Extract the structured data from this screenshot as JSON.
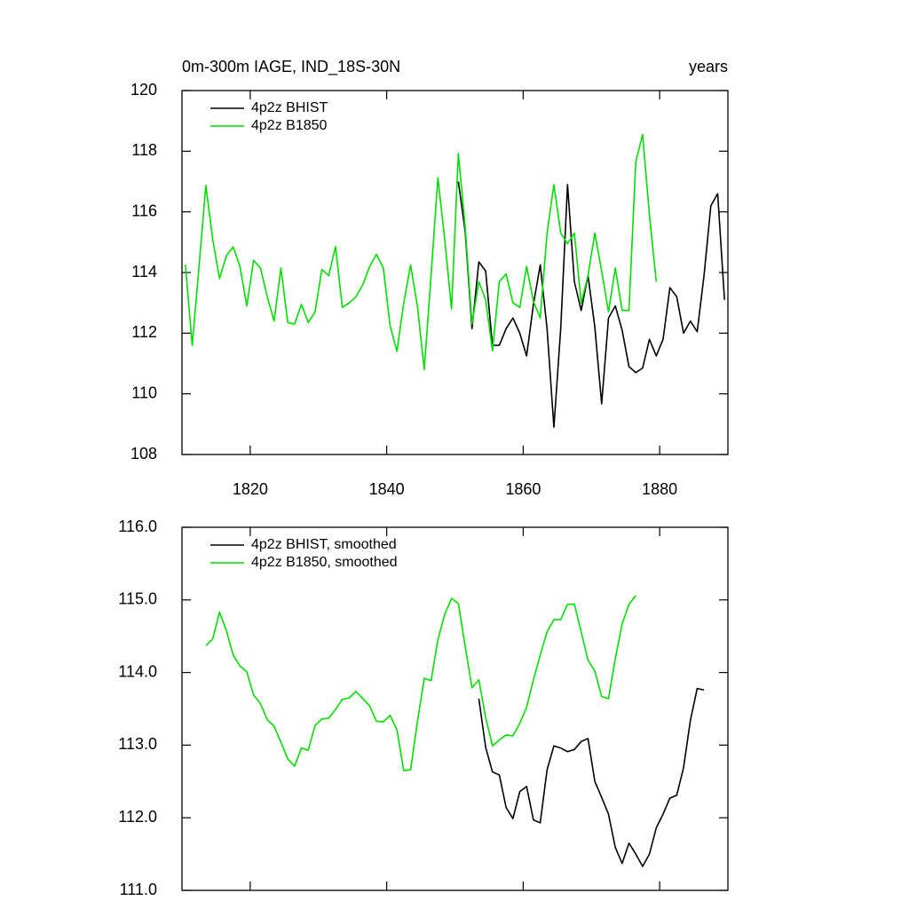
{
  "chart_data": [
    {
      "type": "line",
      "title": "0m-300m IAGE, IND_18S-30N",
      "subtitle": "years",
      "xlim": [
        1810,
        1890
      ],
      "xticks": [
        1820,
        1840,
        1860,
        1880
      ],
      "ylim": [
        108,
        120
      ],
      "yticks": [
        108,
        110,
        112,
        114,
        116,
        118,
        120
      ],
      "legend": "upper left",
      "series": [
        {
          "name": "4p2z BHIST",
          "color": "#000000",
          "x": [
            1850.5,
            1851.5,
            1852.5,
            1853.5,
            1854.5,
            1855.5,
            1856.5,
            1857.5,
            1858.5,
            1859.5,
            1860.5,
            1861.5,
            1862.5,
            1863.5,
            1864.5,
            1865.5,
            1866.5,
            1867.5,
            1868.5,
            1869.5,
            1870.5,
            1871.5,
            1872.5,
            1873.5,
            1874.5,
            1875.5,
            1876.5,
            1877.5,
            1878.5,
            1879.5,
            1880.5,
            1881.5,
            1882.5,
            1883.5,
            1884.5,
            1885.5,
            1886.5,
            1887.5,
            1888.5,
            1889.5
          ],
          "values": [
            117.0,
            115.35,
            112.15,
            114.35,
            114.05,
            111.6,
            111.6,
            112.15,
            112.5,
            112.0,
            111.25,
            112.95,
            114.25,
            112.15,
            108.9,
            112.15,
            116.9,
            113.7,
            112.75,
            113.9,
            112.2,
            109.67,
            112.5,
            112.9,
            112.1,
            110.9,
            110.7,
            110.85,
            111.8,
            111.25,
            111.8,
            113.5,
            113.2,
            112.0,
            112.4,
            112.05,
            113.9,
            116.2,
            116.6,
            113.1
          ]
        },
        {
          "name": "4p2z B1850",
          "color": "#00e000",
          "x": [
            1810.5,
            1811.5,
            1812.5,
            1813.5,
            1814.5,
            1815.5,
            1816.5,
            1817.5,
            1818.5,
            1819.5,
            1820.5,
            1821.5,
            1822.5,
            1823.5,
            1824.5,
            1825.5,
            1826.5,
            1827.5,
            1828.5,
            1829.5,
            1830.5,
            1831.5,
            1832.5,
            1833.5,
            1834.5,
            1835.5,
            1836.5,
            1837.5,
            1838.5,
            1839.5,
            1840.5,
            1841.5,
            1842.5,
            1843.5,
            1844.5,
            1845.5,
            1846.5,
            1847.5,
            1848.5,
            1849.5,
            1850.5,
            1851.5,
            1852.5,
            1853.5,
            1854.5,
            1855.5,
            1856.5,
            1857.5,
            1858.5,
            1859.5,
            1860.5,
            1861.5,
            1862.5,
            1863.5,
            1864.5,
            1865.5,
            1866.5,
            1867.5,
            1868.5,
            1869.5,
            1870.5,
            1871.5,
            1872.5,
            1873.5,
            1874.5,
            1875.5,
            1876.5,
            1877.5,
            1878.5,
            1879.5
          ],
          "values": [
            114.26,
            111.6,
            114.2,
            116.87,
            115.1,
            113.8,
            114.55,
            114.85,
            114.2,
            112.9,
            114.4,
            114.15,
            113.2,
            112.4,
            114.15,
            112.35,
            112.3,
            112.95,
            112.35,
            112.7,
            114.1,
            113.9,
            114.85,
            112.85,
            113.0,
            113.2,
            113.6,
            114.2,
            114.6,
            114.15,
            112.25,
            111.4,
            113.0,
            114.25,
            112.9,
            110.8,
            113.9,
            117.13,
            115.1,
            112.8,
            117.92,
            115.5,
            112.3,
            113.7,
            113.1,
            111.42,
            113.7,
            113.95,
            113.0,
            112.85,
            114.2,
            113.05,
            112.5,
            115.3,
            116.9,
            115.3,
            114.95,
            115.3,
            113.0,
            113.9,
            115.3,
            114.05,
            112.7,
            114.15,
            112.75,
            112.75,
            117.65,
            118.55,
            115.9,
            113.7
          ]
        }
      ]
    },
    {
      "type": "line",
      "xlim": [
        1810,
        1890
      ],
      "xticks": [
        1820,
        1840,
        1860,
        1880
      ],
      "ylim": [
        111,
        116
      ],
      "yticks": [
        {
          "value": 111,
          "label": "111.0"
        },
        {
          "value": 112,
          "label": "112.0"
        },
        {
          "value": 113,
          "label": "113.0"
        },
        {
          "value": 114,
          "label": "114.0"
        },
        {
          "value": 115,
          "label": "115.0"
        },
        {
          "value": 116,
          "label": "116.0"
        }
      ],
      "legend": "upper left",
      "series": [
        {
          "name": "4p2z BHIST, smoothed",
          "color": "#000000",
          "x": [
            1853.5,
            1854.5,
            1855.5,
            1856.5,
            1857.5,
            1858.5,
            1859.5,
            1860.5,
            1861.5,
            1862.5,
            1863.5,
            1864.5,
            1865.5,
            1866.5,
            1867.5,
            1868.5,
            1869.5,
            1870.5,
            1871.5,
            1872.5,
            1873.5,
            1874.5,
            1875.5,
            1876.5,
            1877.5,
            1878.5,
            1879.5,
            1880.5,
            1881.5,
            1882.5,
            1883.5,
            1884.5,
            1885.5,
            1886.5
          ],
          "values": [
            113.64,
            112.97,
            112.63,
            112.59,
            112.14,
            111.99,
            112.36,
            112.43,
            111.97,
            111.93,
            112.66,
            112.99,
            112.96,
            112.91,
            112.94,
            113.05,
            113.09,
            112.5,
            112.28,
            112.05,
            111.59,
            111.37,
            111.65,
            111.5,
            111.33,
            111.5,
            111.86,
            112.05,
            112.27,
            112.31,
            112.69,
            113.34,
            113.78,
            113.76
          ]
        },
        {
          "name": "4p2z B1850, smoothed",
          "color": "#00e000",
          "x": [
            1813.5,
            1814.5,
            1815.5,
            1816.5,
            1817.5,
            1818.5,
            1819.5,
            1820.5,
            1821.5,
            1822.5,
            1823.5,
            1824.5,
            1825.5,
            1826.5,
            1827.5,
            1828.5,
            1829.5,
            1830.5,
            1831.5,
            1832.5,
            1833.5,
            1834.5,
            1835.5,
            1836.5,
            1837.5,
            1838.5,
            1839.5,
            1840.5,
            1841.5,
            1842.5,
            1843.5,
            1844.5,
            1845.5,
            1846.5,
            1847.5,
            1848.5,
            1849.5,
            1850.5,
            1851.5,
            1852.5,
            1853.5,
            1854.5,
            1855.5,
            1856.5,
            1857.5,
            1858.5,
            1859.5,
            1860.5,
            1861.5,
            1862.5,
            1863.5,
            1864.5,
            1865.5,
            1866.5,
            1867.5,
            1868.5,
            1869.5,
            1870.5,
            1871.5,
            1872.5,
            1873.5,
            1874.5,
            1875.5,
            1876.5
          ],
          "values": [
            114.37,
            114.46,
            114.83,
            114.58,
            114.24,
            114.09,
            114.01,
            113.69,
            113.57,
            113.35,
            113.26,
            113.04,
            112.81,
            112.71,
            112.96,
            112.93,
            113.27,
            113.36,
            113.37,
            113.49,
            113.63,
            113.65,
            113.74,
            113.64,
            113.54,
            113.33,
            113.32,
            113.41,
            113.21,
            112.65,
            112.66,
            113.32,
            113.92,
            113.89,
            114.45,
            114.8,
            115.02,
            114.95,
            114.36,
            113.79,
            113.9,
            113.38,
            112.99,
            113.07,
            113.14,
            113.13,
            113.3,
            113.52,
            113.9,
            114.24,
            114.56,
            114.73,
            114.73,
            114.94,
            114.94,
            114.56,
            114.17,
            114.02,
            113.67,
            113.64,
            114.19,
            114.67,
            114.94,
            115.06
          ]
        }
      ]
    }
  ]
}
